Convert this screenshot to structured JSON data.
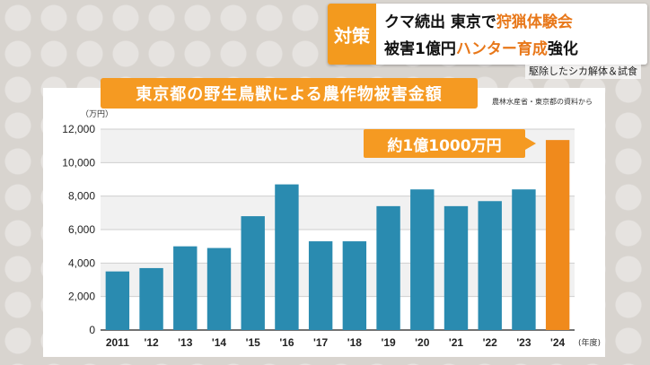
{
  "headline": {
    "tag": "対策",
    "line1_pre": "クマ続出 東京で",
    "line1_hl": "狩猟体験会",
    "line2_pre": "被害1億円",
    "line2_hl": "ハンター育成",
    "line2_post": "強化"
  },
  "subcaption": "駆除したシカ解体＆試食",
  "colors": {
    "bar": "#2a8bb0",
    "bar_highlight": "#f08a1c",
    "accent": "#f59a22"
  },
  "chart_data": {
    "type": "bar",
    "title": "東京都の野生鳥獣による農作物被害金額",
    "source": "農林水産省・東京都の資料から",
    "ylabel": "（万円）",
    "xunit": "(年度)",
    "categories": [
      "2011",
      "'12",
      "'13",
      "'14",
      "'15",
      "'16",
      "'17",
      "'18",
      "'19",
      "'20",
      "'21",
      "'22",
      "'23",
      "'24"
    ],
    "values": [
      3500,
      3700,
      5000,
      4900,
      6800,
      8700,
      5300,
      5300,
      7400,
      8400,
      7400,
      7700,
      8400,
      11350
    ],
    "ylim": [
      0,
      12000
    ],
    "yticks": [
      "0",
      "2,000",
      "4,000",
      "6,000",
      "8,000",
      "10,000",
      "12,000"
    ],
    "ytick_values": [
      0,
      2000,
      4000,
      6000,
      8000,
      10000,
      12000
    ],
    "highlight_index": 13,
    "annotation": "約1億1000万円",
    "grid": true
  }
}
